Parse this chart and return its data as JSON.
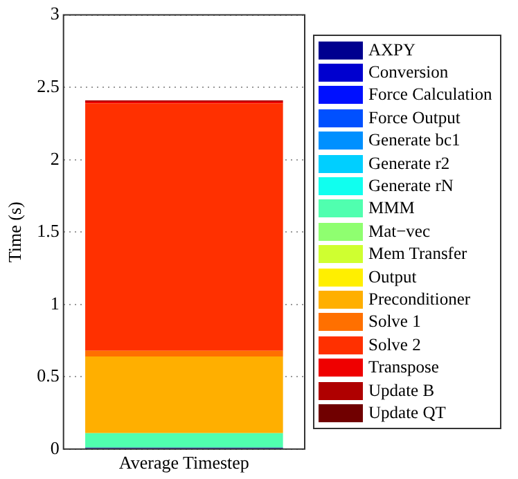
{
  "chart_data": {
    "type": "bar",
    "stacked": true,
    "categories": [
      "Average Timestep"
    ],
    "ylabel": "Time (s)",
    "ylim": [
      0,
      3
    ],
    "yticks": [
      0,
      0.5,
      1,
      1.5,
      2,
      2.5,
      3
    ],
    "grid": "y",
    "legend": "right",
    "series": [
      {
        "name": "AXPY",
        "color": "#00008f",
        "values": [
          0.01
        ]
      },
      {
        "name": "Conversion",
        "color": "#0000cf",
        "values": [
          0
        ]
      },
      {
        "name": "Force Calculation",
        "color": "#0010ff",
        "values": [
          0
        ]
      },
      {
        "name": "Force Output",
        "color": "#0050ff",
        "values": [
          0
        ]
      },
      {
        "name": "Generate bc1",
        "color": "#0090ff",
        "values": [
          0
        ]
      },
      {
        "name": "Generate r2",
        "color": "#00cfff",
        "values": [
          0
        ]
      },
      {
        "name": "Generate rN",
        "color": "#10ffef",
        "values": [
          0
        ]
      },
      {
        "name": "MMM",
        "color": "#50ffaf",
        "values": [
          0.1
        ]
      },
      {
        "name": "Mat−vec",
        "color": "#8fff70",
        "values": [
          0
        ]
      },
      {
        "name": "Mem Transfer",
        "color": "#cfff30",
        "values": [
          0
        ]
      },
      {
        "name": "Output",
        "color": "#ffef00",
        "values": [
          0
        ]
      },
      {
        "name": "Preconditioner",
        "color": "#ffaf00",
        "values": [
          0.53
        ]
      },
      {
        "name": "Solve 1",
        "color": "#ff7000",
        "values": [
          0.04
        ]
      },
      {
        "name": "Solve 2",
        "color": "#ff3000",
        "values": [
          1.71
        ]
      },
      {
        "name": "Transpose",
        "color": "#ef0000",
        "values": [
          0.01
        ]
      },
      {
        "name": "Update B",
        "color": "#af0000",
        "values": [
          0.01
        ]
      },
      {
        "name": "Update QT",
        "color": "#700000",
        "values": [
          0
        ]
      }
    ]
  }
}
